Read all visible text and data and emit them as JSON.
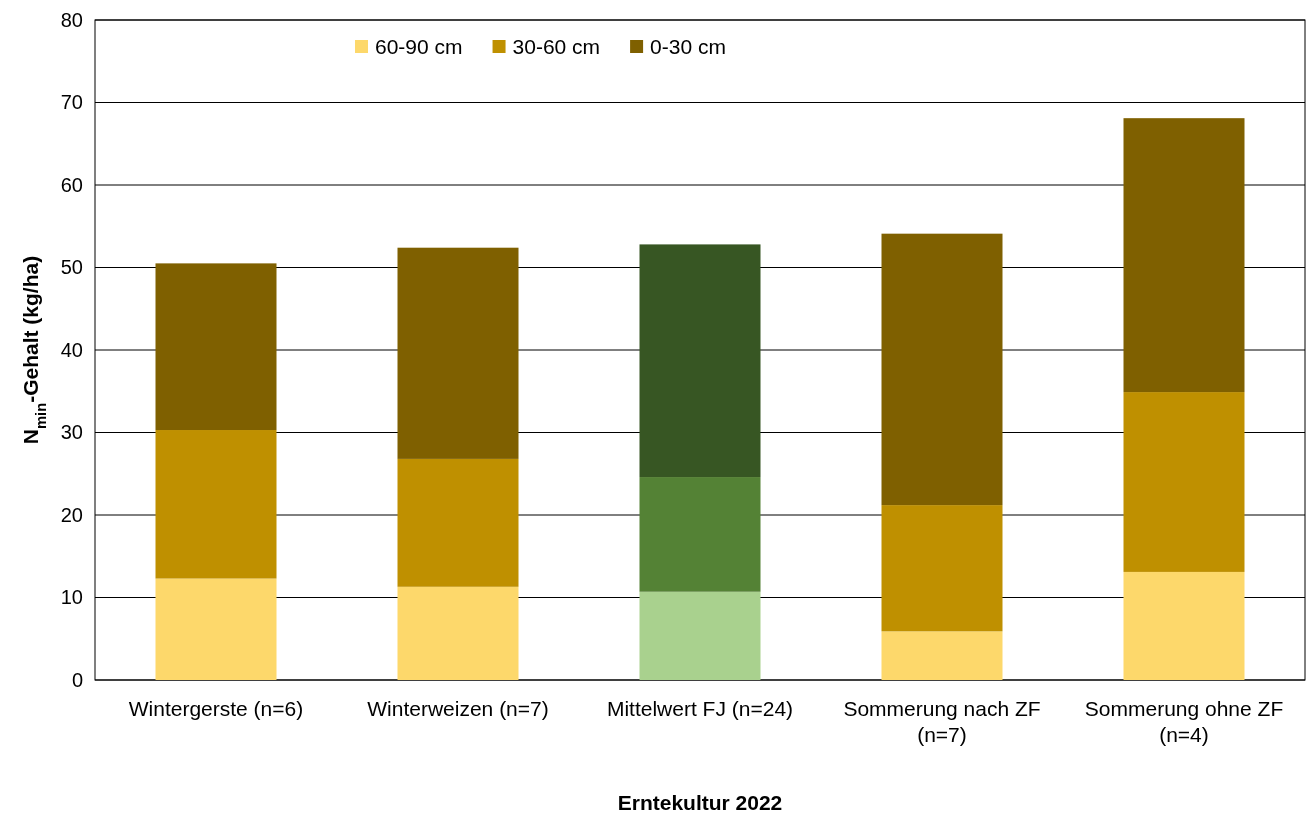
{
  "chart_data": {
    "type": "bar",
    "stacked": true,
    "xlabel": "Erntekultur 2022",
    "ylabel": "N$_{min}$-Gehalt (kg/ha)",
    "categories": [
      "Wintergerste (n=6)",
      "Winterweizen (n=7)",
      "Mittelwert FJ (n=24)",
      "Sommerung nach ZF (n=7)",
      "Sommerung ohne ZF (n=4)"
    ],
    "series": [
      {
        "name": "60-90 cm",
        "color": "#fdd86b",
        "colors": [
          "#fdd86b",
          "#fdd86b",
          "#a9d18e",
          "#fdd86b",
          "#fdd86b"
        ],
        "values": [
          12.3,
          11.3,
          10.7,
          5.9,
          13.1
        ]
      },
      {
        "name": "30-60 cm",
        "color": "#bf9000",
        "colors": [
          "#bf9000",
          "#bf9000",
          "#548235",
          "#bf9000",
          "#bf9000"
        ],
        "values": [
          18.0,
          15.5,
          13.9,
          15.3,
          21.8
        ]
      },
      {
        "name": "0-30 cm",
        "color": "#7f6000",
        "colors": [
          "#7f6000",
          "#7f6000",
          "#375623",
          "#7f6000",
          "#7f6000"
        ],
        "values": [
          20.2,
          25.6,
          28.2,
          32.9,
          33.2
        ]
      }
    ],
    "ylim": [
      0,
      80
    ],
    "yticks": [
      0,
      10,
      20,
      30,
      40,
      50,
      60,
      70,
      80
    ],
    "grid": "y",
    "legend": "top"
  }
}
